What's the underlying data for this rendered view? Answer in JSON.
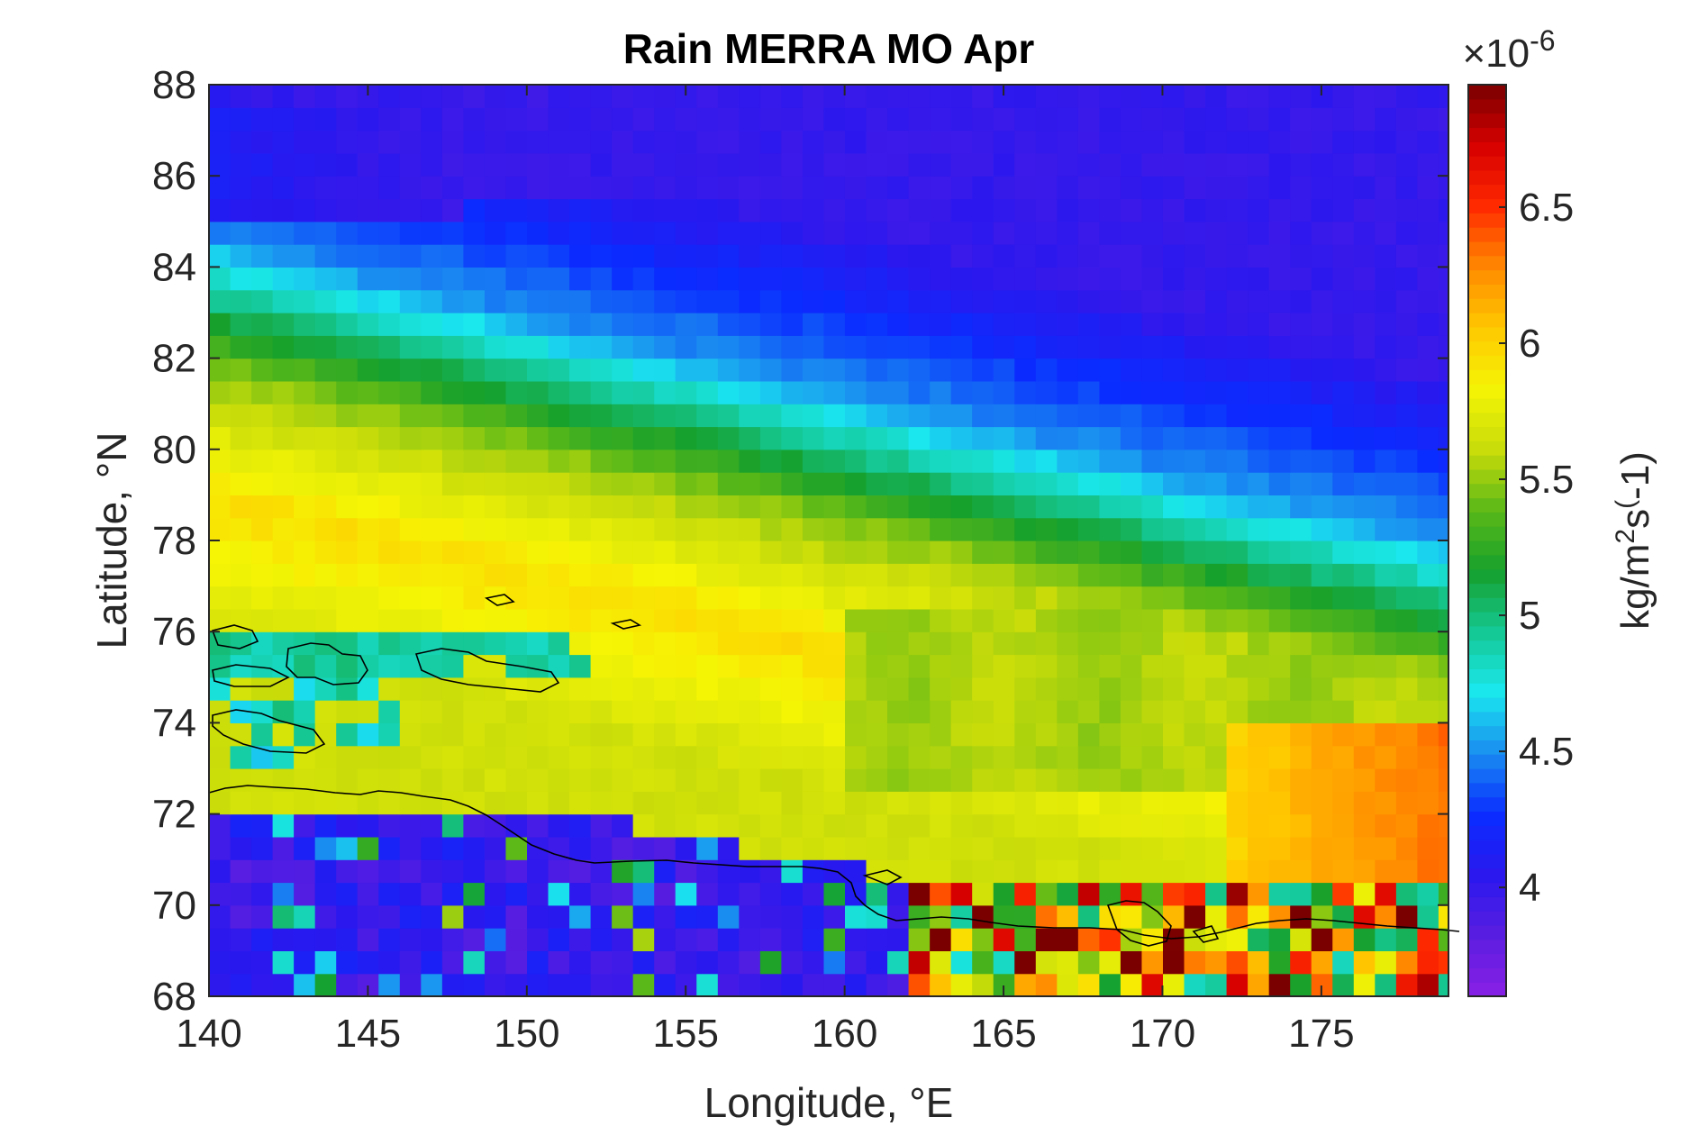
{
  "chart_data": {
    "type": "heatmap",
    "title": "Rain MERRA MO Apr",
    "xlabel": "Longitude, °E",
    "ylabel": "Latitude, °N",
    "xlim": [
      140,
      179
    ],
    "ylim": [
      68,
      88
    ],
    "xticks": [
      "140",
      "145",
      "150",
      "155",
      "160",
      "165",
      "170",
      "175"
    ],
    "yticks": [
      "68",
      "70",
      "72",
      "74",
      "76",
      "78",
      "80",
      "82",
      "84",
      "86",
      "88"
    ],
    "colorbar": {
      "label": "kg/m²s⁽-1)",
      "label_parts": [
        "kg/m",
        "2",
        "s",
        "(",
        "-1)"
      ],
      "exponent_label": "×10",
      "exponent_power": "-6",
      "range": [
        3.6,
        6.95
      ],
      "ticks": [
        "4",
        "4.5",
        "5",
        "5.5",
        "6",
        "6.5"
      ],
      "colormap": [
        "#8a1fe6",
        "#5a1ee0",
        "#2a18ee",
        "#0a2cff",
        "#1a8cf0",
        "#1ae8ee",
        "#15c895",
        "#16a02c",
        "#5ab818",
        "#c8dc0a",
        "#f5f505",
        "#ffc800",
        "#ff8a00",
        "#ff2a00",
        "#d80000",
        "#7a0000"
      ]
    },
    "grid_resolution": {
      "dlon": 0.667,
      "dlat": 0.5
    },
    "description_of_field": "Gridded monthly mean precipitation rate (x10^-6 kg m^-2 s^-1); approx. 4.0 near the pole, minimum ~4.5 band at 83-85N (blue), cyan max ~5.0-5.2 band sloping from 83N at 140E to 76N at 179E, green 5.5 band, yellow-green 5.8-6.0 zone at 73-76N, low purple ~4.0 over land south of 72N, noisy high values (6.5-7) near 68-70N east of 162E"
  }
}
